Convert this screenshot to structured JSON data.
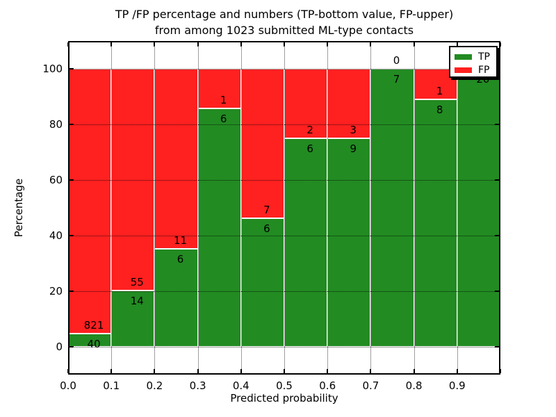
{
  "title": {
    "line1": "TP /FP percentage and numbers (TP-bottom value, FP-upper)",
    "line2": "from among 1023 submitted ML-type contacts"
  },
  "chart_data": {
    "type": "bar",
    "stacked": true,
    "normalized": "percent",
    "title": "TP /FP percentage and numbers (TP-bottom value, FP-upper) from among 1023 submitted ML-type contacts",
    "xlabel": "Predicted probability",
    "ylabel": "Percentage",
    "total_contacts": 1023,
    "bin_starts": [
      0.0,
      0.1,
      0.2,
      0.3,
      0.4,
      0.5,
      0.6,
      0.7,
      0.8,
      0.9
    ],
    "bin_width": 0.1,
    "series": [
      {
        "name": "TP",
        "color": "#228b22",
        "values": [
          40,
          14,
          6,
          6,
          6,
          6,
          9,
          7,
          8,
          20
        ]
      },
      {
        "name": "FP",
        "color": "#ff2020",
        "values": [
          821,
          55,
          11,
          1,
          7,
          2,
          3,
          0,
          1,
          0
        ]
      }
    ],
    "tp_percent": [
      4.6,
      20.3,
      35.3,
      85.7,
      46.2,
      75.0,
      75.0,
      100.0,
      88.9,
      100.0
    ],
    "x_tick_labels": [
      "0.0",
      "0.1",
      "0.2",
      "0.3",
      "0.4",
      "0.5",
      "0.6",
      "0.7",
      "0.8",
      "0.9"
    ],
    "y_tick_labels": [
      "0",
      "20",
      "40",
      "60",
      "80",
      "100"
    ],
    "y_tick_values": [
      0,
      20,
      40,
      60,
      80,
      100
    ],
    "xlim": [
      0.0,
      1.0
    ],
    "ylim": [
      -10,
      110
    ],
    "grid": true,
    "legend_position": "upper right",
    "bar_edge_color": "#ffffff",
    "label_color": "#000000"
  }
}
